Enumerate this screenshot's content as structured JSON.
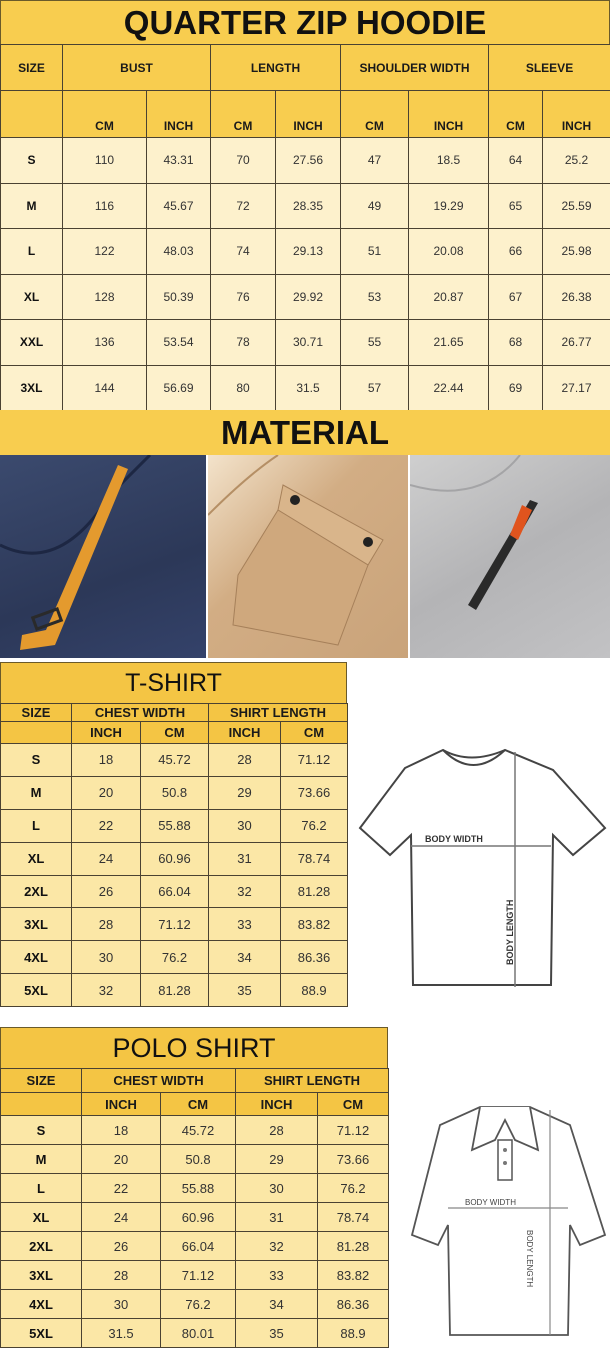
{
  "hoodie": {
    "title": "QUARTER ZIP HOODIE",
    "size_label": "SIZE",
    "groups": [
      "BUST",
      "LENGTH",
      "SHOULDER WIDTH",
      "SLEEVE"
    ],
    "units": [
      "CM",
      "INCH",
      "CM",
      "INCH",
      "CM",
      "INCH",
      "CM",
      "INCH"
    ],
    "rows": [
      [
        "S",
        "110",
        "43.31",
        "70",
        "27.56",
        "47",
        "18.5",
        "64",
        "25.2"
      ],
      [
        "M",
        "116",
        "45.67",
        "72",
        "28.35",
        "49",
        "19.29",
        "65",
        "25.59"
      ],
      [
        "L",
        "122",
        "48.03",
        "74",
        "29.13",
        "51",
        "20.08",
        "66",
        "25.98"
      ],
      [
        "XL",
        "128",
        "50.39",
        "76",
        "29.92",
        "53",
        "20.87",
        "67",
        "26.38"
      ],
      [
        "XXL",
        "136",
        "53.54",
        "78",
        "30.71",
        "55",
        "21.65",
        "68",
        "26.77"
      ],
      [
        "3XL",
        "144",
        "56.69",
        "80",
        "31.5",
        "57",
        "22.44",
        "69",
        "27.17"
      ]
    ]
  },
  "material": {
    "title": "MATERIAL",
    "photos": [
      "navy-fabric-with-orange-zipper-pull",
      "tan-fabric-with-flap-pocket",
      "grey-fabric-with-zipper-pocket"
    ]
  },
  "tshirt": {
    "title": "T-SHIRT",
    "size_label": "SIZE",
    "groups": [
      "CHEST WIDTH",
      "SHIRT LENGTH"
    ],
    "units": [
      "INCH",
      "CM",
      "INCH",
      "CM"
    ],
    "rows": [
      [
        "S",
        "18",
        "45.72",
        "28",
        "71.12"
      ],
      [
        "M",
        "20",
        "50.8",
        "29",
        "73.66"
      ],
      [
        "L",
        "22",
        "55.88",
        "30",
        "76.2"
      ],
      [
        "XL",
        "24",
        "60.96",
        "31",
        "78.74"
      ],
      [
        "2XL",
        "26",
        "66.04",
        "32",
        "81.28"
      ],
      [
        "3XL",
        "28",
        "71.12",
        "33",
        "83.82"
      ],
      [
        "4XL",
        "30",
        "76.2",
        "34",
        "86.36"
      ],
      [
        "5XL",
        "32",
        "81.28",
        "35",
        "88.9"
      ]
    ],
    "diagram": {
      "body_width": "BODY WIDTH",
      "body_length": "BODY LENGTH"
    }
  },
  "polo": {
    "title": "POLO SHIRT",
    "size_label": "SIZE",
    "groups": [
      "CHEST WIDTH",
      "SHIRT LENGTH"
    ],
    "units": [
      "INCH",
      "CM",
      "INCH",
      "CM"
    ],
    "rows": [
      [
        "S",
        "18",
        "45.72",
        "28",
        "71.12"
      ],
      [
        "M",
        "20",
        "50.8",
        "29",
        "73.66"
      ],
      [
        "L",
        "22",
        "55.88",
        "30",
        "76.2"
      ],
      [
        "XL",
        "24",
        "60.96",
        "31",
        "78.74"
      ],
      [
        "2XL",
        "26",
        "66.04",
        "32",
        "81.28"
      ],
      [
        "3XL",
        "28",
        "71.12",
        "33",
        "83.82"
      ],
      [
        "4XL",
        "30",
        "76.2",
        "34",
        "86.36"
      ],
      [
        "5XL",
        "31.5",
        "80.01",
        "35",
        "88.9"
      ]
    ],
    "diagram": {
      "body_width": "BODY WIDTH",
      "body_length": "BODY LENGTH"
    }
  },
  "colors": {
    "header": "#f8cd4f",
    "cell": "#fdf1cc",
    "border": "#4a4232"
  }
}
